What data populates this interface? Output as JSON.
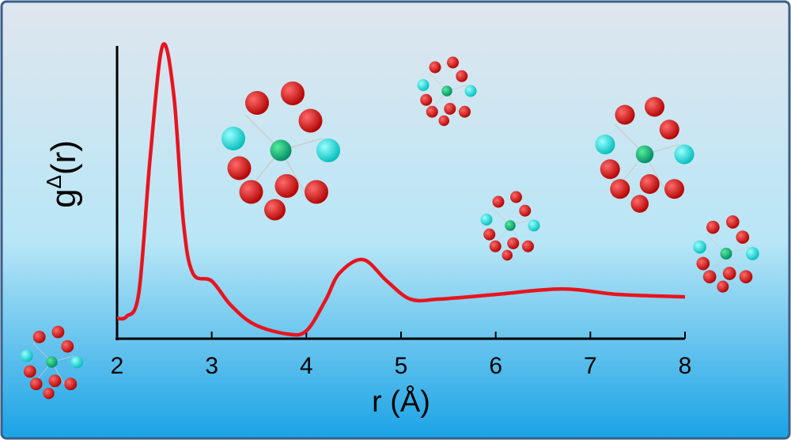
{
  "chart_data": {
    "type": "line",
    "y_label_base": "g",
    "y_label_superscript": "Δ",
    "y_label_suffix": "(r)",
    "x_label": "r (Å)",
    "x": [
      2.0,
      2.1,
      2.23,
      2.35,
      2.48,
      2.6,
      2.7,
      2.8,
      3.0,
      3.2,
      3.45,
      3.8,
      4.0,
      4.2,
      4.35,
      4.6,
      4.85,
      5.1,
      5.4,
      6.0,
      6.7,
      7.3,
      8.0
    ],
    "series": [
      {
        "color": "#e8141e",
        "values": [
          0.07,
          0.076,
          0.157,
          0.62,
          1.0,
          0.83,
          0.4,
          0.224,
          0.197,
          0.115,
          0.049,
          0.016,
          0.027,
          0.13,
          0.224,
          0.27,
          0.197,
          0.135,
          0.135,
          0.151,
          0.17,
          0.151,
          0.143
        ]
      }
    ],
    "xlim": [
      2,
      8
    ],
    "xticks": [
      2,
      3,
      4,
      5,
      6,
      7,
      8
    ],
    "ylim": [
      0,
      1
    ]
  }
}
